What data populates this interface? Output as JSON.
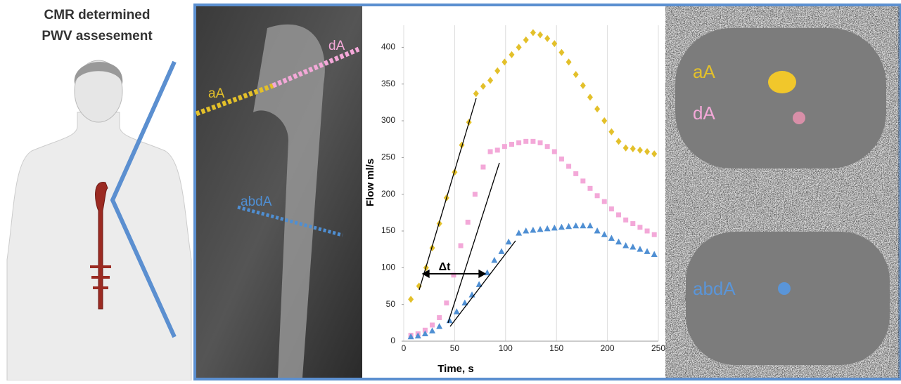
{
  "figure": {
    "title": [
      "CMR determined",
      "PWV assesement"
    ],
    "sagittal_labels": [
      "aA",
      "dA",
      "abdA"
    ],
    "axial_labels": [
      "aA",
      "dA",
      "abdA"
    ]
  },
  "chart_data": {
    "type": "scatter",
    "xlabel": "Time, s",
    "ylabel": "Flow ml/s",
    "annotation": "Δt",
    "xlim": [
      0,
      250
    ],
    "ylim": [
      0,
      430
    ],
    "xticks": [
      0,
      50,
      100,
      150,
      200,
      250
    ],
    "yticks": [
      0,
      50,
      100,
      150,
      200,
      250,
      300,
      350,
      400
    ],
    "grid": true,
    "series": [
      {
        "color": "#e3c02a",
        "marker": "diamond",
        "x": [
          7,
          15,
          22,
          28,
          35,
          42,
          50,
          57,
          64,
          71,
          78,
          85,
          92,
          99,
          106,
          113,
          120,
          127,
          134,
          141,
          148,
          155,
          162,
          169,
          176,
          183,
          190,
          197,
          204,
          211,
          218,
          225,
          232,
          239,
          246
        ],
        "values": [
          57,
          75,
          100,
          127,
          160,
          195,
          230,
          267,
          298,
          337,
          347,
          355,
          368,
          380,
          390,
          400,
          410,
          420,
          417,
          412,
          405,
          393,
          380,
          363,
          348,
          332,
          316,
          300,
          285,
          272,
          263,
          262,
          260,
          258,
          255
        ]
      },
      {
        "color": "#f3a8d8",
        "marker": "square",
        "x": [
          7,
          14,
          21,
          28,
          35,
          42,
          49,
          56,
          63,
          70,
          78,
          85,
          92,
          99,
          106,
          113,
          120,
          127,
          134,
          141,
          148,
          155,
          162,
          169,
          176,
          183,
          190,
          197,
          204,
          211,
          218,
          225,
          232,
          239,
          246
        ],
        "values": [
          8,
          10,
          15,
          22,
          32,
          52,
          90,
          130,
          162,
          200,
          237,
          258,
          260,
          265,
          268,
          270,
          272,
          272,
          270,
          265,
          258,
          248,
          238,
          228,
          218,
          208,
          198,
          190,
          180,
          172,
          165,
          160,
          155,
          150,
          145
        ]
      },
      {
        "color": "#4f8fd3",
        "marker": "triangle",
        "x": [
          7,
          14,
          21,
          28,
          35,
          45,
          52,
          60,
          67,
          74,
          82,
          89,
          96,
          103,
          113,
          120,
          127,
          134,
          141,
          148,
          155,
          162,
          169,
          176,
          183,
          190,
          197,
          204,
          211,
          218,
          225,
          232,
          239,
          246
        ],
        "values": [
          6,
          7,
          10,
          14,
          20,
          28,
          40,
          52,
          63,
          77,
          93,
          110,
          122,
          135,
          147,
          150,
          151,
          152,
          153,
          154,
          155,
          156,
          157,
          157,
          157,
          150,
          145,
          140,
          135,
          130,
          128,
          125,
          122,
          118
        ]
      }
    ]
  }
}
